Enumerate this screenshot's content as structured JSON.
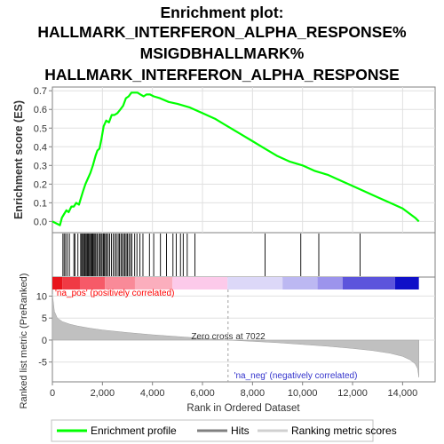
{
  "title_lines": [
    "Enrichment plot:",
    "HALLMARK_INTERFERON_ALPHA_RESPONSE%",
    "MSIGDBHALLMARK%",
    "HALLMARK_INTERFERON_ALPHA_RESPONSE"
  ],
  "chart_data": [
    {
      "type": "line",
      "panel": "enrichment-score",
      "ylabel": "Enrichment score (ES)",
      "xlim": [
        0,
        15300
      ],
      "ylim": [
        -0.06,
        0.72
      ],
      "yticks": [
        "0.0",
        "0.1",
        "0.2",
        "0.3",
        "0.4",
        "0.5",
        "0.6",
        "0.7"
      ],
      "ytick_values": [
        0.0,
        0.1,
        0.2,
        0.3,
        0.4,
        0.5,
        0.6,
        0.7
      ],
      "grid": true,
      "series": [
        {
          "name": "Enrichment profile",
          "color": "#00ff00",
          "x": [
            0,
            300,
            380,
            470,
            560,
            650,
            760,
            860,
            950,
            1060,
            1130,
            1220,
            1320,
            1420,
            1520,
            1620,
            1720,
            1800,
            1880,
            1960,
            2050,
            2150,
            2260,
            2370,
            2480,
            2600,
            2720,
            2830,
            2940,
            3050,
            3160,
            3270,
            3400,
            3520,
            3650,
            3760,
            3900,
            4050,
            4300,
            4650,
            5000,
            5500,
            6000,
            6500,
            7000,
            7500,
            8000,
            8500,
            9000,
            9500,
            10000,
            10500,
            11000,
            11500,
            12000,
            12500,
            13000,
            13500,
            14000,
            14500,
            14650
          ],
          "y": [
            0.0,
            -0.02,
            0.02,
            0.04,
            0.06,
            0.05,
            0.08,
            0.08,
            0.1,
            0.09,
            0.12,
            0.16,
            0.2,
            0.23,
            0.26,
            0.3,
            0.35,
            0.38,
            0.39,
            0.44,
            0.51,
            0.54,
            0.53,
            0.57,
            0.57,
            0.58,
            0.6,
            0.62,
            0.66,
            0.67,
            0.69,
            0.69,
            0.69,
            0.68,
            0.67,
            0.68,
            0.68,
            0.67,
            0.66,
            0.64,
            0.63,
            0.61,
            0.58,
            0.55,
            0.51,
            0.47,
            0.43,
            0.39,
            0.35,
            0.32,
            0.3,
            0.27,
            0.25,
            0.22,
            0.19,
            0.16,
            0.13,
            0.1,
            0.07,
            0.02,
            0.0
          ]
        }
      ]
    },
    {
      "type": "hits",
      "panel": "hits",
      "legend_name": "Hits",
      "hit_positions": [
        420,
        470,
        530,
        600,
        680,
        860,
        900,
        1020,
        1130,
        1170,
        1210,
        1250,
        1290,
        1320,
        1360,
        1400,
        1440,
        1480,
        1520,
        1560,
        1590,
        1620,
        1660,
        1700,
        1740,
        1790,
        1850,
        1900,
        1950,
        1990,
        2040,
        2080,
        2130,
        2170,
        2230,
        2290,
        2360,
        2430,
        2500,
        2560,
        2630,
        2680,
        2740,
        2790,
        2850,
        2900,
        2950,
        3000,
        3060,
        3120,
        3180,
        3290,
        3380,
        3500,
        3620,
        3880,
        4050,
        4320,
        4560,
        4820,
        4950,
        5120,
        5230,
        5390,
        5700,
        8500,
        9930,
        10650,
        12300
      ]
    },
    {
      "type": "area",
      "panel": "ranked-metric",
      "ylabel": "Ranked list metric (PreRanked)",
      "xlabel": "Rank in Ordered Dataset",
      "xlim": [
        0,
        15300
      ],
      "ylim": [
        -9.5,
        11.5
      ],
      "yticks": [
        "-5",
        "0",
        "5",
        "10"
      ],
      "ytick_values": [
        -5,
        0,
        5,
        10
      ],
      "xticks": [
        "0",
        "2,000",
        "4,000",
        "6,000",
        "8,000",
        "10,000",
        "12,000",
        "14,000"
      ],
      "xtick_values": [
        0,
        2000,
        4000,
        6000,
        8000,
        10000,
        12000,
        14000
      ],
      "x": [
        0,
        80,
        200,
        400,
        700,
        1000,
        1500,
        2000,
        3000,
        4000,
        5000,
        6000,
        7022,
        8000,
        9000,
        10000,
        11000,
        12000,
        12800,
        13500,
        14000,
        14300,
        14500,
        14600,
        14650
      ],
      "y": [
        10.5,
        6.5,
        5.0,
        4.2,
        3.6,
        3.2,
        2.7,
        2.3,
        1.7,
        1.2,
        0.8,
        0.4,
        0.0,
        -0.3,
        -0.6,
        -1.0,
        -1.4,
        -1.9,
        -2.4,
        -3.0,
        -3.7,
        -4.5,
        -5.4,
        -6.5,
        -8.5
      ],
      "color": "#c0c0c0",
      "zero_cross_label": "Zero cross at 7022",
      "zero_cross": 7022,
      "pos_label": "'na_pos' (positively correlated)",
      "neg_label": "'na_neg' (negatively correlated)",
      "pos_color": "#ff0000",
      "neg_color": "#0000ff"
    }
  ],
  "heat_bar": {
    "segments": [
      {
        "from": 0,
        "to": 400,
        "color": "#e8141c"
      },
      {
        "from": 400,
        "to": 1100,
        "color": "#f03a44"
      },
      {
        "from": 1100,
        "to": 2100,
        "color": "#f65a68"
      },
      {
        "from": 2100,
        "to": 3300,
        "color": "#f98a98"
      },
      {
        "from": 3300,
        "to": 4800,
        "color": "#fbaebd"
      },
      {
        "from": 4800,
        "to": 7000,
        "color": "#fccaea"
      },
      {
        "from": 7000,
        "to": 9200,
        "color": "#dcd8f8"
      },
      {
        "from": 9200,
        "to": 10600,
        "color": "#bcb8f2"
      },
      {
        "from": 10600,
        "to": 11600,
        "color": "#9c94ec"
      },
      {
        "from": 11600,
        "to": 13700,
        "color": "#5c54dc"
      },
      {
        "from": 13700,
        "to": 14650,
        "color": "#1010c8"
      }
    ]
  },
  "legend": {
    "items": [
      {
        "label": "Enrichment profile",
        "color": "#00ff00"
      },
      {
        "label": "Hits",
        "color": "#808080"
      },
      {
        "label": "Ranking metric scores",
        "color": "#d0d0d0"
      }
    ]
  },
  "colors": {
    "grid": "#e0e0e0",
    "axis": "#808080",
    "zero_line": "#b0b0b0"
  }
}
